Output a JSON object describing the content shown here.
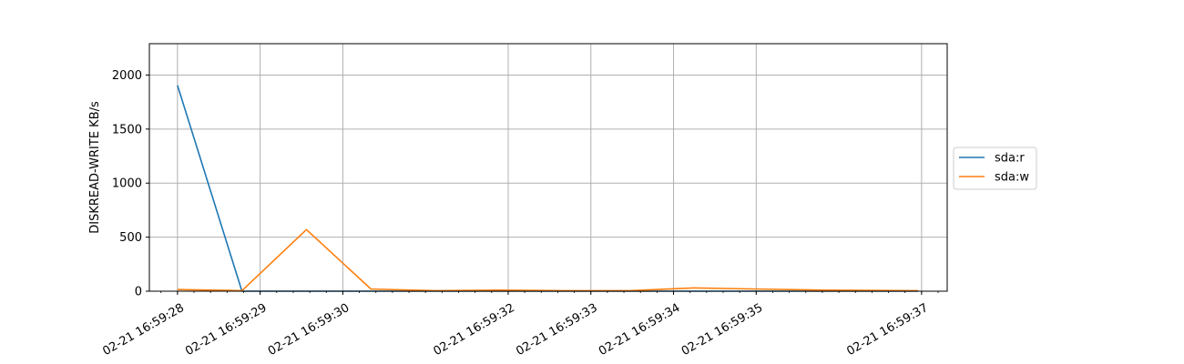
{
  "chart_data": {
    "type": "line",
    "title": "",
    "xlabel": "",
    "ylabel": "DISKREAD-WRITE KB/s",
    "x_ticks": [
      "02-21 16:59:28",
      "02-21 16:59:29",
      "02-21 16:59:30",
      "02-21 16:59:32",
      "02-21 16:59:33",
      "02-21 16:59:34",
      "02-21 16:59:35",
      "02-21 16:59:37"
    ],
    "y_ticks": [
      0,
      500,
      1000,
      1500,
      2000
    ],
    "xlim": [
      "02-21 16:59:27.66",
      "02-21 16:59:37.31"
    ],
    "ylim": [
      0,
      2290
    ],
    "grid": true,
    "legend_position": "right",
    "series": [
      {
        "name": "sda:r",
        "color": "#1f77b4",
        "x": [
          "02-21 16:59:28.00",
          "02-21 16:59:28.78",
          "02-21 16:59:29.56",
          "02-21 16:59:30.34",
          "02-21 16:59:31.12",
          "02-21 16:59:31.90",
          "02-21 16:59:32.68",
          "02-21 16:59:33.46",
          "02-21 16:59:34.24",
          "02-21 16:59:35.02",
          "02-21 16:59:35.80",
          "02-21 16:59:36.96"
        ],
        "values": [
          1905,
          0,
          0,
          0,
          0,
          0,
          0,
          0,
          0,
          0,
          0,
          0
        ]
      },
      {
        "name": "sda:w",
        "color": "#ff7f0e",
        "x": [
          "02-21 16:59:28.00",
          "02-21 16:59:28.78",
          "02-21 16:59:29.56",
          "02-21 16:59:30.34",
          "02-21 16:59:31.12",
          "02-21 16:59:31.90",
          "02-21 16:59:32.68",
          "02-21 16:59:33.46",
          "02-21 16:59:34.24",
          "02-21 16:59:35.02",
          "02-21 16:59:35.80",
          "02-21 16:59:36.96"
        ],
        "values": [
          15,
          5,
          570,
          20,
          5,
          10,
          5,
          5,
          30,
          20,
          10,
          5
        ]
      }
    ]
  }
}
